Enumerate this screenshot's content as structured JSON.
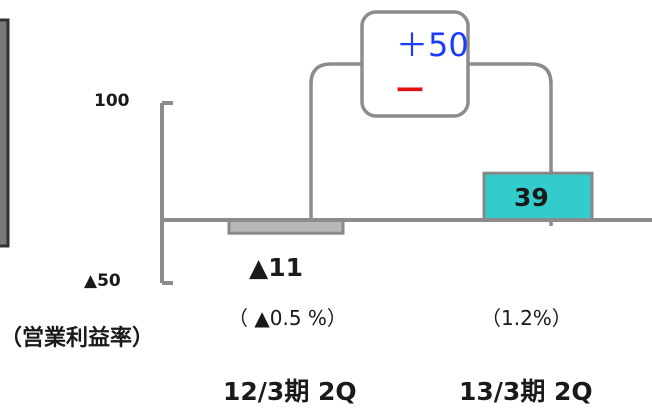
{
  "chart_data": {
    "type": "bar",
    "title": "",
    "xlabel": "",
    "ylabel": "（営業利益率）",
    "categories": [
      "12/3期 2Q",
      "13/3期 2Q"
    ],
    "values": [
      -11,
      39
    ],
    "value_labels": [
      "▲11",
      "39"
    ],
    "ratio_labels": [
      "（ ▲0.5 %）",
      "（1.2%）"
    ],
    "y_tick_labels": [
      "100",
      "▲50"
    ],
    "y_ticks": [
      100,
      -50
    ],
    "bar_colors": [
      "#b8b8b8",
      "#33cccc"
    ],
    "change_callout": {
      "plus": "＋50",
      "minus": "ー",
      "plus_color": "#1a3cff",
      "minus_color": "#e01010"
    }
  },
  "colors": {
    "axis": "#8c8c8c",
    "callout_border": "#8c8c8c",
    "left_panel_fill": "#7a7a7a",
    "left_panel_border": "#333333"
  }
}
